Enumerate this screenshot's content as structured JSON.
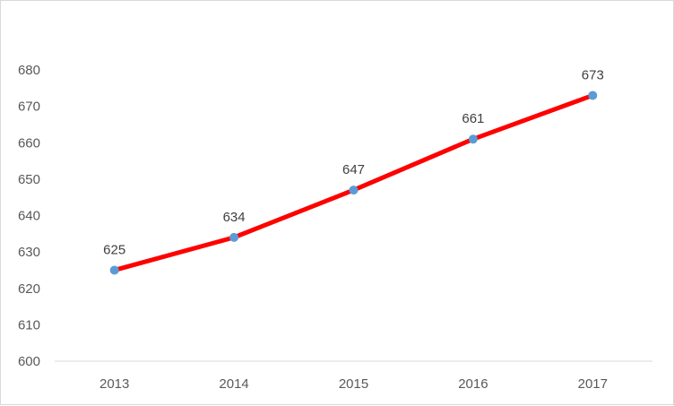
{
  "chart_data": {
    "type": "line",
    "title": "",
    "xlabel": "",
    "ylabel": "",
    "categories": [
      "2013",
      "2014",
      "2015",
      "2016",
      "2017"
    ],
    "series": [
      {
        "values": [
          625,
          634,
          647,
          661,
          673
        ],
        "data_labels": [
          "625",
          "634",
          "647",
          "661",
          "673"
        ]
      }
    ],
    "y_ticks": [
      "600",
      "610",
      "620",
      "630",
      "640",
      "650",
      "660",
      "670",
      "680"
    ],
    "ylim": [
      600,
      680
    ],
    "grid": false,
    "legend": "none",
    "colors": {
      "line": "#ff0000",
      "marker": "#5b9bd5",
      "axis": "#d9d9d9"
    }
  }
}
